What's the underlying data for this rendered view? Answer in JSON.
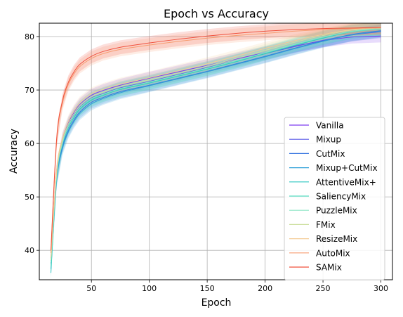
{
  "chart_data": {
    "type": "line",
    "title": "Epoch vs Accuracy",
    "xlabel": "Epoch",
    "ylabel": "Accuracy",
    "xlim": [
      5,
      310
    ],
    "ylim": [
      34.5,
      82.5
    ],
    "xticks": [
      50,
      100,
      150,
      200,
      250,
      300
    ],
    "yticks": [
      40,
      50,
      60,
      70,
      80
    ],
    "grid": true,
    "legend_position": "lower right",
    "x": [
      15,
      20,
      25,
      30,
      35,
      40,
      50,
      60,
      75,
      100,
      125,
      150,
      175,
      200,
      225,
      250,
      275,
      300
    ],
    "series": [
      {
        "name": "Vanilla",
        "color": "#7d3cf0",
        "band": 1.2,
        "values": [
          38.5,
          55.0,
          60.8,
          63.8,
          65.8,
          67.3,
          69.0,
          69.9,
          70.9,
          72.2,
          73.4,
          74.6,
          75.8,
          77.0,
          78.2,
          79.2,
          79.9,
          80.1
        ]
      },
      {
        "name": "Mixup",
        "color": "#5a5ae8",
        "band": 1.2,
        "values": [
          38.0,
          54.5,
          60.2,
          63.3,
          65.3,
          66.8,
          68.5,
          69.3,
          70.4,
          71.6,
          72.9,
          74.2,
          75.5,
          76.8,
          78.1,
          79.3,
          80.3,
          80.9
        ]
      },
      {
        "name": "CutMix",
        "color": "#3a78e0",
        "band": 1.2,
        "values": [
          37.5,
          53.5,
          59.4,
          62.4,
          64.4,
          65.9,
          67.7,
          68.6,
          69.7,
          70.9,
          72.2,
          73.5,
          74.9,
          76.3,
          77.8,
          79.2,
          80.4,
          81.1
        ]
      },
      {
        "name": "Mixup+CutMix",
        "color": "#2fa0d8",
        "band": 1.2,
        "values": [
          36.5,
          53.0,
          59.0,
          62.1,
          64.1,
          65.6,
          67.4,
          68.4,
          69.5,
          70.8,
          72.1,
          73.4,
          74.8,
          76.2,
          77.7,
          79.1,
          80.3,
          81.0
        ]
      },
      {
        "name": "AttentiveMix+",
        "color": "#2cc6c0",
        "band": 1.3,
        "values": [
          35.8,
          53.8,
          59.8,
          62.9,
          64.9,
          66.4,
          68.1,
          69.0,
          70.1,
          71.3,
          72.6,
          73.9,
          75.3,
          76.8,
          78.3,
          79.7,
          80.9,
          81.5
        ]
      },
      {
        "name": "SaliencyMix",
        "color": "#55dcc0",
        "band": 1.3,
        "values": [
          37.0,
          54.0,
          60.0,
          63.1,
          65.1,
          66.6,
          68.3,
          69.1,
          70.2,
          71.4,
          72.7,
          74.0,
          75.4,
          76.9,
          78.4,
          79.8,
          80.9,
          81.4
        ]
      },
      {
        "name": "PuzzleMix",
        "color": "#8ee6c6",
        "band": 1.3,
        "values": [
          37.8,
          54.2,
          60.1,
          63.2,
          65.2,
          66.7,
          68.4,
          69.2,
          70.3,
          71.5,
          72.8,
          74.1,
          75.5,
          77.0,
          78.5,
          79.9,
          81.0,
          81.5
        ]
      },
      {
        "name": "FMix",
        "color": "#cde0a0",
        "band": 1.2,
        "values": [
          38.2,
          54.6,
          60.5,
          63.6,
          65.6,
          67.1,
          68.8,
          69.6,
          70.7,
          71.9,
          73.2,
          74.5,
          75.9,
          77.4,
          78.9,
          80.2,
          81.2,
          81.6
        ]
      },
      {
        "name": "ResizeMix",
        "color": "#f4cc96",
        "band": 1.2,
        "values": [
          38.8,
          55.2,
          61.0,
          64.1,
          66.1,
          67.6,
          69.3,
          70.1,
          71.1,
          72.3,
          73.6,
          74.9,
          76.3,
          77.8,
          79.2,
          80.4,
          81.3,
          81.8
        ]
      },
      {
        "name": "AutoMix",
        "color": "#f79c70",
        "band": 1.3,
        "values": [
          39.5,
          60.5,
          67.5,
          71.0,
          73.0,
          74.4,
          75.9,
          76.8,
          77.6,
          78.4,
          79.1,
          79.7,
          80.2,
          80.6,
          81.0,
          81.3,
          81.5,
          81.6
        ]
      },
      {
        "name": "SAMix",
        "color": "#f0503c",
        "band": 1.3,
        "values": [
          40.0,
          61.0,
          68.0,
          71.4,
          73.4,
          74.8,
          76.3,
          77.2,
          78.0,
          78.8,
          79.5,
          80.1,
          80.6,
          81.0,
          81.3,
          81.5,
          81.6,
          81.7
        ]
      }
    ]
  }
}
